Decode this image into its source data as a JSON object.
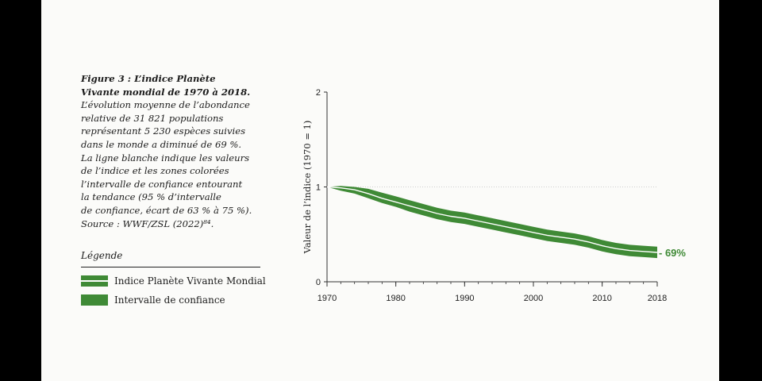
{
  "caption": {
    "title_lines": [
      "Figure 3 : L’indice Planète",
      "Vivante mondial de 1970 à 2018."
    ],
    "body_lines": [
      "L’évolution moyenne de l’abondance",
      "relative de 31 821 populations",
      "représentant 5 230 espèces suivies",
      "dans le monde a diminué de 69 %.",
      "La ligne blanche indique les valeurs",
      "de l’indice et les zones colorées",
      "l’intervalle de confiance entourant",
      "la tendance (95 % d’intervalle",
      "de confiance, écart de 63 % à 75 %).",
      "Source : WWF/ZSL (2022)⁸⁴."
    ]
  },
  "legend": {
    "title": "Légende",
    "items": [
      {
        "label": "Indice Planète Vivante Mondial",
        "kind": "line"
      },
      {
        "label": "Intervalle de confiance",
        "kind": "band"
      }
    ]
  },
  "colors": {
    "band": "#3f8a36",
    "line": "#ffffff",
    "reference": "#cfcfcf",
    "axis": "#333333",
    "annotation": "#3f8a36"
  },
  "chart_data": {
    "type": "area",
    "title": "",
    "ylabel": "Valeur de l’indice (1970 = 1)",
    "xlabel": "",
    "xlim": [
      1970,
      2018
    ],
    "ylim": [
      0,
      2
    ],
    "x_ticks": [
      1970,
      1980,
      1990,
      2000,
      2010,
      2018
    ],
    "y_ticks": [
      0,
      1,
      2
    ],
    "reference_line": 1,
    "end_annotation": "- 69%",
    "series": [
      {
        "name": "Indice Planète Vivante Mondial",
        "x": [
          1970,
          1972,
          1974,
          1976,
          1978,
          1980,
          1982,
          1984,
          1986,
          1988,
          1990,
          1992,
          1994,
          1996,
          1998,
          2000,
          2002,
          2004,
          2006,
          2008,
          2010,
          2012,
          2014,
          2016,
          2018
        ],
        "y": [
          1.0,
          0.99,
          0.97,
          0.93,
          0.88,
          0.84,
          0.8,
          0.76,
          0.72,
          0.69,
          0.67,
          0.64,
          0.61,
          0.58,
          0.55,
          0.52,
          0.49,
          0.47,
          0.45,
          0.42,
          0.38,
          0.35,
          0.33,
          0.32,
          0.31
        ],
        "lower": [
          1.0,
          0.96,
          0.93,
          0.88,
          0.83,
          0.79,
          0.74,
          0.7,
          0.66,
          0.63,
          0.61,
          0.58,
          0.55,
          0.52,
          0.49,
          0.46,
          0.43,
          0.41,
          0.39,
          0.36,
          0.32,
          0.29,
          0.27,
          0.26,
          0.25
        ],
        "upper": [
          1.0,
          1.01,
          1.0,
          0.98,
          0.94,
          0.9,
          0.86,
          0.82,
          0.78,
          0.75,
          0.73,
          0.7,
          0.67,
          0.64,
          0.61,
          0.58,
          0.55,
          0.53,
          0.51,
          0.48,
          0.44,
          0.41,
          0.39,
          0.38,
          0.37
        ]
      }
    ]
  }
}
